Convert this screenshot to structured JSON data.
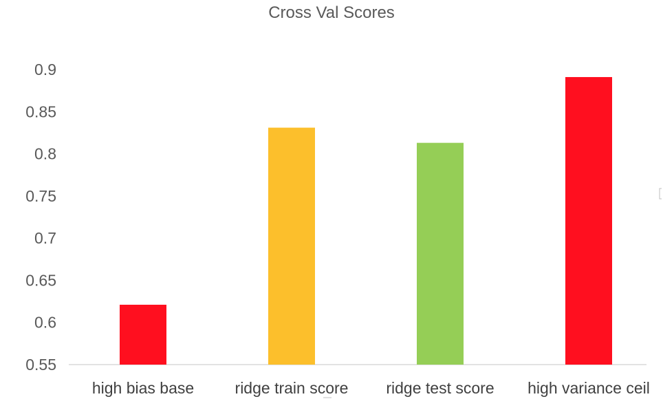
{
  "chart_data": {
    "type": "bar",
    "title": "Cross Val Scores",
    "xlabel": "",
    "ylabel": "",
    "categories": [
      "high bias base",
      "ridge train score",
      "ridge test score",
      "high variance ceil"
    ],
    "values": [
      0.621,
      0.831,
      0.813,
      0.891
    ],
    "colors": [
      "#ff0f1f",
      "#fcbf2c",
      "#95ce56",
      "#ff0f1f"
    ],
    "ylim": [
      0.55,
      0.9
    ],
    "yticks": [
      0.55,
      0.6,
      0.65,
      0.7,
      0.75,
      0.8,
      0.85,
      0.9
    ],
    "ytick_labels": [
      "0.55",
      "0.6",
      "0.65",
      "0.7",
      "0.75",
      "0.8",
      "0.85",
      "0.9"
    ],
    "grid": false,
    "legend": "none"
  }
}
